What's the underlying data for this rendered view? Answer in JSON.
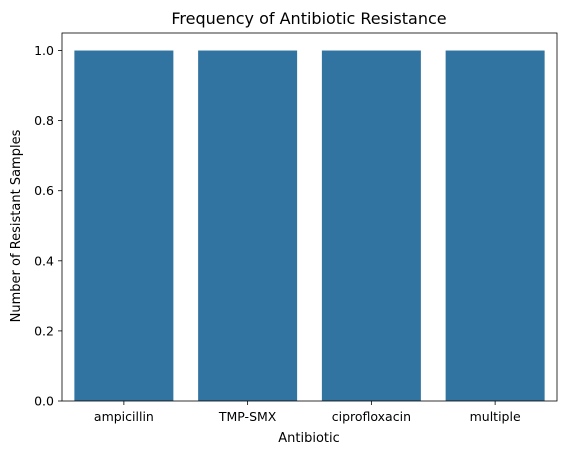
{
  "chart_data": {
    "type": "bar",
    "title": "Frequency of Antibiotic Resistance",
    "xlabel": "Antibiotic",
    "ylabel": "Number of Resistant Samples",
    "categories": [
      "ampicillin",
      "TMP-SMX",
      "ciprofloxacin",
      "multiple"
    ],
    "values": [
      1,
      1,
      1,
      1
    ],
    "ylim": [
      0,
      1.05
    ],
    "yticks": [
      "0.0",
      "0.2",
      "0.4",
      "0.6",
      "0.8",
      "1.0"
    ],
    "bar_color": "#3274a1",
    "grid": false,
    "legend": "none"
  }
}
